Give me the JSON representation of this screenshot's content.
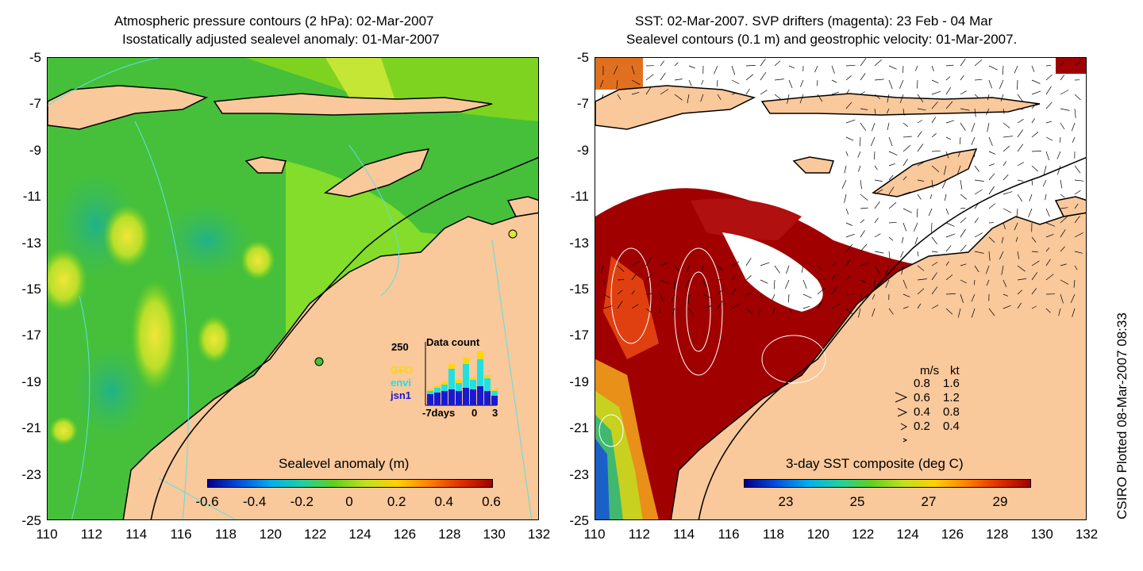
{
  "left_panel": {
    "title_line1": "Atmospheric pressure contours (2 hPa): 02-Mar-2007",
    "title_line2": "Isostatically adjusted sealevel anomaly: 01-Mar-2007",
    "colorbar_title": "Sealevel anomaly (m)",
    "colorbar_ticks": [
      "-0.6",
      "-0.4",
      "-0.2",
      "0",
      "0.2",
      "0.4",
      "0.6"
    ],
    "inset": {
      "max_label": "250",
      "title": "Data count",
      "series": [
        "GFO",
        "envi",
        "jsn1"
      ],
      "series_colors": [
        "#ffd700",
        "#22e0e0",
        "#1a1acc"
      ],
      "x_labels": [
        "-7days",
        "0",
        "3"
      ]
    }
  },
  "right_panel": {
    "title_line1": "SST: 02-Mar-2007. SVP drifters (magenta): 23 Feb - 04 Mar",
    "title_line2": "Sealevel contours (0.1 m) and geostrophic velocity: 01-Mar-2007.",
    "colorbar_title": "3-day SST composite (deg C)",
    "colorbar_ticks": [
      "23",
      "25",
      "27",
      "29"
    ],
    "velocity_legend": {
      "header_ms": "m/s",
      "header_kt": "kt",
      "rows": [
        {
          "ms": "0.8",
          "kt": "1.6"
        },
        {
          "ms": "0.6",
          "kt": "1.2"
        },
        {
          "ms": "0.4",
          "kt": "0.8"
        },
        {
          "ms": "0.2",
          "kt": "0.4"
        }
      ]
    }
  },
  "axes": {
    "y_ticks": [
      "-5",
      "-7",
      "-9",
      "-11",
      "-13",
      "-15",
      "-17",
      "-19",
      "-21",
      "-23",
      "-25"
    ],
    "x_ticks": [
      "110",
      "112",
      "114",
      "116",
      "118",
      "120",
      "122",
      "124",
      "126",
      "128",
      "130",
      "132"
    ]
  },
  "credit": "CSIRO Plotted 08-Mar-2007 08:33",
  "colors": {
    "land": "#f9c89b",
    "ocean_green": "#44c02c",
    "sst_dark_red": "#a00000"
  }
}
